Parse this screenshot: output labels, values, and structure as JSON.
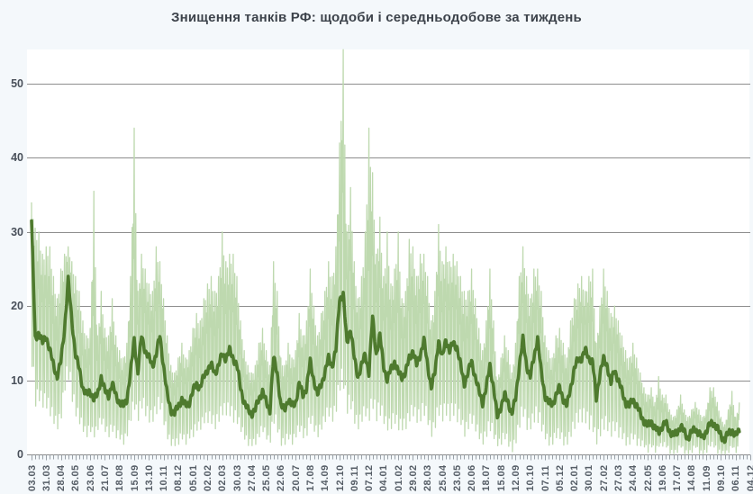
{
  "title": "Знищення танків РФ: щодоби і середньодобове за тиждень",
  "colors": {
    "background": "#f4f8fb",
    "plot_background": "#ffffff",
    "gridline": "#8d8d8d",
    "tick": "#9aa1a8",
    "daily_series": "#bed9af",
    "average_series": "#4e7a2e",
    "title_text": "#3d434b",
    "axis_label_text": "#555d66"
  },
  "chart_data": {
    "type": "line",
    "title": "Знищення танків РФ: щодоби і середньодобове за тиждень",
    "legend": "none (two series distinguished by color/weight, named in title)",
    "series": [
      {
        "name": "щодоби",
        "description": "daily destroyed tanks",
        "color": "#bed9af",
        "line_width": 1.3
      },
      {
        "name": "середньодобове за тиждень",
        "description": "7-day average of daily destroyed tanks",
        "color": "#4e7a2e",
        "line_width": 3.6
      }
    ],
    "x_axis": {
      "start_label": "03.03",
      "end_label": "04.12",
      "label_interval_days": 28,
      "minor_tick_interval_days": 7,
      "tick_labels": [
        "03.03",
        "31.03",
        "28.04",
        "26.05",
        "23.06",
        "21.07",
        "18.08",
        "15.09",
        "13.10",
        "10.11",
        "08.12",
        "05.01",
        "02.02",
        "02.03",
        "30.03",
        "27.04",
        "25.05",
        "22.06",
        "20.07",
        "17.08",
        "14.09",
        "12.10",
        "09.11",
        "07.12",
        "04.01",
        "01.02",
        "29.02",
        "28.03",
        "25.04",
        "23.05",
        "20.06",
        "18.07",
        "15.08",
        "12.09",
        "10.10",
        "07.11",
        "05.12",
        "02.01",
        "30.01",
        "27.02",
        "27.03",
        "24.04",
        "22.05",
        "19.06",
        "17.07",
        "14.08",
        "11.09",
        "09.10",
        "06.11",
        "04.12"
      ]
    },
    "y_axis": {
      "ticks": [
        0,
        10,
        20,
        30,
        40,
        50
      ],
      "visible_max": 54.6,
      "gridlines": true
    },
    "peak_daily_value": 55,
    "peak_average_value": 31.5,
    "data_end_offset_days": 1351,
    "axis_end_offset_days": 1375,
    "weekly_data": {
      "note": "values sampled every 7 days from 03.03 (day 0); avg = thick dark-green 7-day-average line; daily_max / daily_min = weekly envelope of the thin light-green daily line",
      "interval_days": 7,
      "avg": [
        31.5,
        15.5,
        16.5,
        15,
        16,
        14,
        12,
        10.5,
        12.5,
        17,
        23.5,
        18,
        13.5,
        11.5,
        9,
        8,
        8.5,
        7.5,
        8,
        10.5,
        8.5,
        8,
        9.5,
        8,
        7,
        6.5,
        7.5,
        11,
        15.5,
        11,
        16,
        14,
        13,
        12,
        13.5,
        16,
        12,
        8,
        6,
        5.5,
        6.5,
        7.5,
        6.5,
        7,
        8.5,
        9.5,
        9,
        10.5,
        11.5,
        12,
        11,
        12,
        13.5,
        13,
        14,
        13,
        12,
        9,
        7,
        6,
        5.5,
        6,
        7.5,
        8.5,
        7,
        6,
        13,
        11,
        6.5,
        6,
        7.5,
        6.5,
        7,
        9.5,
        8,
        9,
        12.5,
        10,
        8,
        9.5,
        11,
        13,
        12,
        14,
        21,
        21.5,
        15,
        17,
        13,
        10.5,
        12,
        13.5,
        11,
        18.5,
        13.5,
        16,
        12,
        10,
        11.5,
        12.5,
        11,
        10.5,
        11,
        13,
        14,
        12,
        13.5,
        15.4,
        12,
        9.1,
        11,
        15.5,
        13,
        15.5,
        14,
        15,
        14.5,
        12,
        9.5,
        11,
        12.5,
        10.5,
        8.5,
        7,
        9,
        12,
        9,
        5,
        6.5,
        8,
        7,
        5.5,
        7.5,
        12,
        15.5,
        12,
        10.5,
        13,
        15.8,
        11,
        8,
        7,
        6.7,
        8,
        9,
        7.5,
        6.5,
        9,
        11.5,
        12.8,
        13,
        14,
        13,
        12.5,
        7.5,
        11,
        12.8,
        12,
        9.5,
        11.5,
        10,
        8.5,
        7,
        6.5,
        7.5,
        6.5,
        5.5,
        4.5,
        3.8,
        4.5,
        3.5,
        3,
        3.8,
        4.2,
        3.2,
        2.5,
        3,
        3.8,
        3,
        2.2,
        3,
        3.5,
        2.8,
        2.2,
        3.2,
        4,
        4.3,
        3.5,
        2.5,
        2,
        2.8,
        3.3,
        2.5,
        3.2
      ],
      "daily_max": [
        34,
        30.5,
        30,
        27,
        28,
        28,
        24,
        21,
        25,
        27,
        28,
        26,
        24,
        22,
        18,
        16,
        17,
        35.5,
        16,
        22,
        17,
        16,
        21,
        16,
        14,
        13,
        15,
        24,
        44,
        22,
        27,
        25,
        23,
        22,
        28,
        26,
        21,
        16,
        12,
        11,
        13,
        15,
        13,
        14,
        17,
        19,
        18,
        21,
        23,
        24,
        22,
        24,
        30,
        26,
        27,
        27,
        24,
        18,
        14,
        12,
        11,
        12,
        15,
        17,
        14,
        12,
        26,
        22,
        13,
        12,
        15,
        13,
        14,
        19,
        16,
        18,
        25,
        20,
        16,
        19,
        22,
        26,
        24,
        28,
        42,
        55,
        30,
        36,
        26,
        21,
        24,
        30,
        44,
        38,
        27,
        32,
        24,
        30,
        23,
        25,
        30,
        21,
        22,
        29,
        28,
        24,
        27,
        27,
        24,
        18,
        22,
        31,
        26,
        28,
        26,
        27,
        26,
        24,
        22,
        22,
        25,
        21,
        17,
        14,
        18,
        25,
        18,
        10,
        13,
        16,
        14,
        11,
        15,
        24,
        28,
        24,
        21,
        25,
        25,
        22,
        16,
        14,
        13,
        16,
        17,
        15,
        13,
        18,
        21,
        23,
        24,
        22,
        24,
        25,
        15,
        20,
        25,
        22,
        19,
        20,
        18,
        16,
        14,
        13,
        15,
        13,
        11,
        9,
        8,
        9,
        7,
        10.5,
        8,
        8,
        6,
        5,
        6,
        8,
        6,
        5,
        6,
        7,
        6,
        5,
        6,
        9,
        9,
        7,
        5,
        4,
        6,
        8.5,
        5,
        7
      ],
      "daily_min": [
        12,
        6,
        7,
        6,
        6,
        5,
        4,
        3,
        4,
        8,
        10,
        7,
        5,
        4,
        3,
        2,
        3,
        2,
        3,
        4,
        3,
        2,
        3,
        2,
        2,
        1,
        2,
        4,
        6,
        4,
        6,
        5,
        4,
        4,
        5,
        6,
        4,
        2,
        1,
        1,
        1,
        2,
        1,
        2,
        2,
        3,
        3,
        4,
        4,
        4,
        3,
        4,
        5,
        5,
        5,
        4,
        4,
        3,
        2,
        1,
        1,
        1,
        2,
        3,
        2,
        1,
        4,
        3,
        1,
        1,
        2,
        1,
        2,
        3,
        2,
        2,
        4,
        3,
        2,
        3,
        4,
        5,
        4,
        5,
        8,
        9,
        5,
        6,
        4,
        3,
        4,
        5,
        4,
        6,
        4,
        5,
        4,
        3,
        3,
        4,
        3,
        3,
        3,
        4,
        5,
        4,
        4,
        5,
        4,
        2,
        3,
        5,
        4,
        5,
        4,
        5,
        4,
        4,
        2,
        3,
        4,
        3,
        2,
        1,
        2,
        3,
        2,
        1,
        1,
        2,
        1,
        0,
        1,
        3,
        5,
        3,
        3,
        4,
        4,
        3,
        2,
        1,
        1,
        2,
        2,
        1,
        1,
        2,
        3,
        4,
        4,
        4,
        3,
        3,
        1,
        2,
        3,
        3,
        2,
        3,
        2,
        2,
        1,
        1,
        2,
        1,
        1,
        1,
        0,
        1,
        0,
        1,
        1,
        1,
        0,
        0,
        0,
        1,
        0,
        0,
        0,
        1,
        0,
        0,
        0,
        1,
        1,
        0,
        0,
        0,
        0,
        1,
        0,
        1
      ]
    }
  }
}
